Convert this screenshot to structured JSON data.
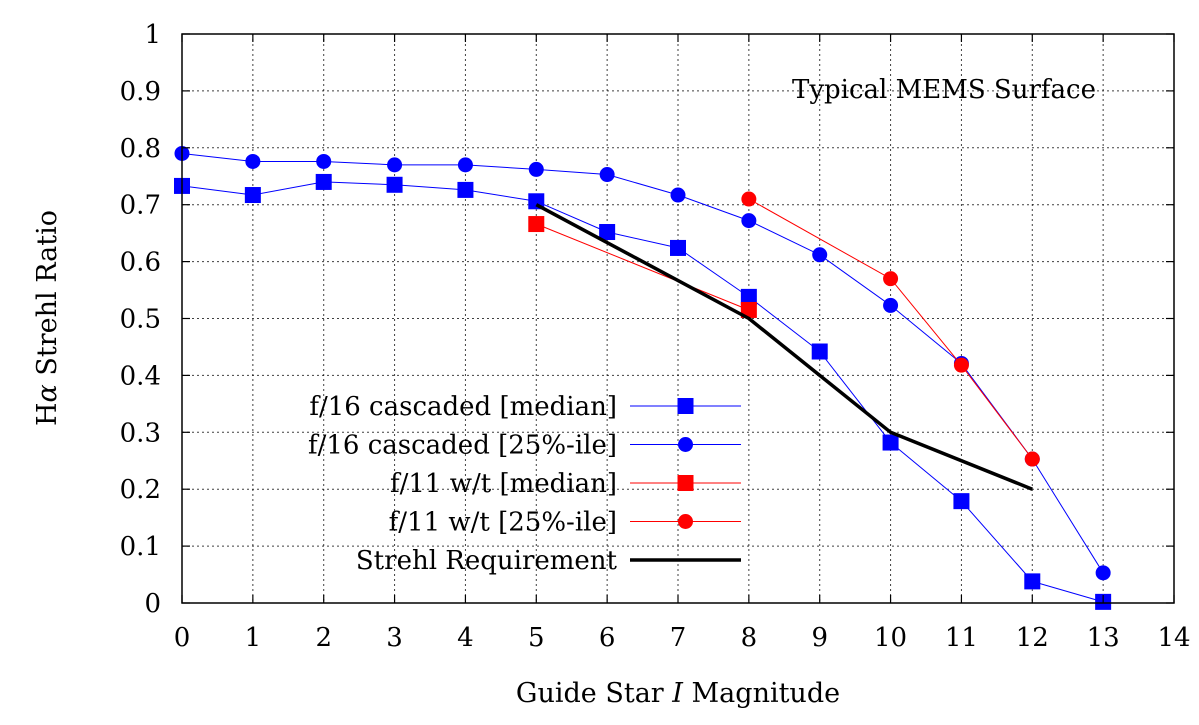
{
  "chart_data": {
    "type": "line",
    "title": "",
    "annotation": "Typical MEMS Surface",
    "xlabel_parts": [
      "Guide Star ",
      "I",
      " Magnitude"
    ],
    "ylabel_parts": [
      "H",
      "α",
      " Strehl Ratio"
    ],
    "xlim": [
      0,
      14
    ],
    "ylim": [
      0,
      1
    ],
    "xticks": [
      0,
      1,
      2,
      3,
      4,
      5,
      6,
      7,
      8,
      9,
      10,
      11,
      12,
      13,
      14
    ],
    "yticks": [
      0,
      0.1,
      0.2,
      0.3,
      0.4,
      0.5,
      0.6,
      0.7,
      0.8,
      0.9,
      1
    ],
    "ytick_labels": [
      "0",
      "0.1",
      "0.2",
      "0.3",
      "0.4",
      "0.5",
      "0.6",
      "0.7",
      "0.8",
      "0.9",
      "1"
    ],
    "grid": true,
    "legend_position": "lower-left",
    "series": [
      {
        "name": "f/16 cascaded [median]",
        "color": "#0000ff",
        "marker": "square",
        "line_width": 1,
        "x": [
          0,
          1,
          2,
          3,
          4,
          5,
          6,
          7,
          8,
          9,
          10,
          11,
          12,
          13
        ],
        "y": [
          0.733,
          0.717,
          0.74,
          0.735,
          0.726,
          0.706,
          0.652,
          0.624,
          0.538,
          0.442,
          0.282,
          0.179,
          0.038,
          0.002
        ]
      },
      {
        "name": "f/16 cascaded [25%-ile]",
        "color": "#0000ff",
        "marker": "circle",
        "line_width": 1,
        "x": [
          0,
          1,
          2,
          3,
          4,
          5,
          6,
          7,
          8,
          9,
          10,
          11,
          12,
          13
        ],
        "y": [
          0.79,
          0.776,
          0.776,
          0.77,
          0.77,
          0.762,
          0.753,
          0.717,
          0.672,
          0.612,
          0.523,
          0.421,
          0.253,
          0.053
        ]
      },
      {
        "name": "f/11 w/t [median]",
        "color": "#ff0000",
        "marker": "square",
        "line_width": 1,
        "x": [
          5,
          8
        ],
        "y": [
          0.666,
          0.515
        ]
      },
      {
        "name": "f/11 w/t [25%-ile]",
        "color": "#ff0000",
        "marker": "circle",
        "line_width": 1,
        "x": [
          8,
          10,
          11,
          12
        ],
        "y": [
          0.71,
          0.57,
          0.418,
          0.253
        ]
      },
      {
        "name": "Strehl Requirement",
        "color": "#000000",
        "marker": "none",
        "line_width": 3.5,
        "x": [
          5,
          8,
          10,
          12
        ],
        "y": [
          0.7,
          0.5,
          0.3,
          0.2
        ]
      }
    ]
  }
}
